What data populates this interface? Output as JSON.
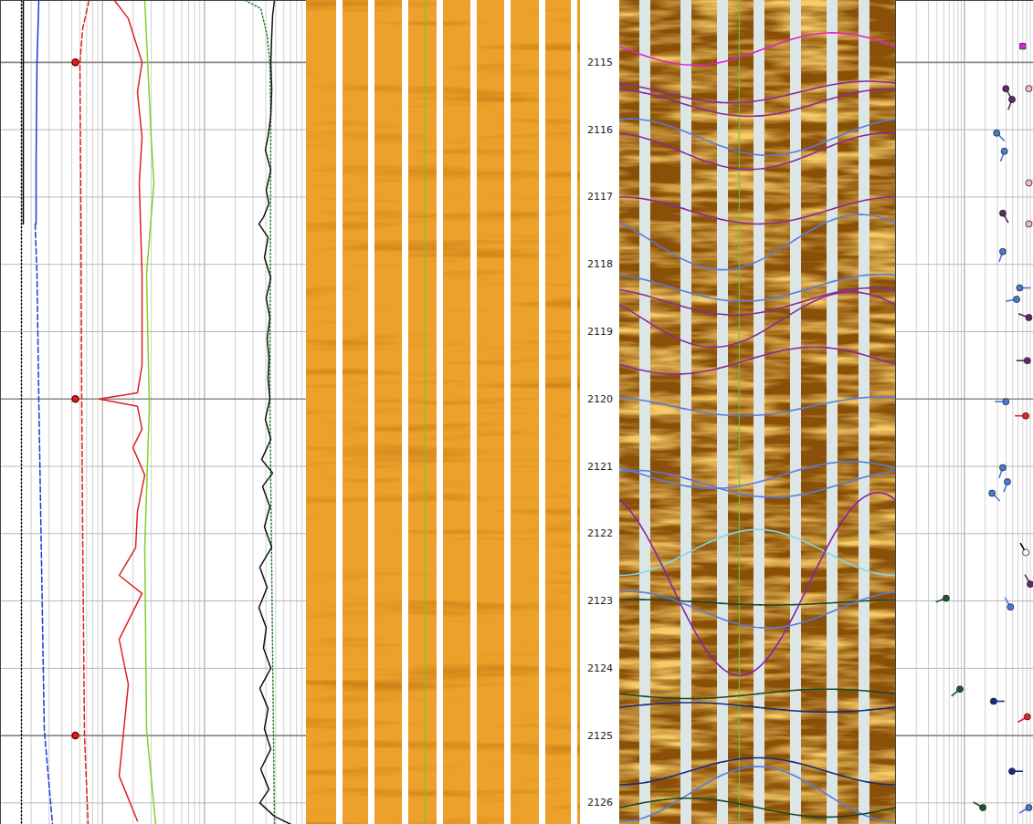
{
  "chart_data": {
    "type": "well_log",
    "ylim": [
      2114.08,
      2126.32
    ],
    "yticks": [
      2115,
      2116,
      2117,
      2118,
      2119,
      2120,
      2121,
      2122,
      2123,
      2124,
      2125,
      2126
    ],
    "grid": true,
    "tick_labels": "y",
    "tracks": [
      {
        "type": "curves",
        "xlim": [
          0,
          335
        ],
        "series": [
          {
            "type": "line",
            "color": "#000000",
            "line_style": "dotted",
            "depth": [
              2114.08,
              2126.32
            ],
            "values": [
              23,
              23
            ]
          },
          {
            "type": "line",
            "color": "#000000",
            "line_style": "solid",
            "depth": [
              2114.08,
              2117.4
            ],
            "values": [
              25,
              25
            ]
          },
          {
            "type": "line",
            "color": "#1a3adc",
            "line_style": "solid",
            "depth": [
              2114.08,
              2115.0,
              2116.5,
              2117.4
            ],
            "values": [
              42,
              40,
              39,
              39
            ]
          },
          {
            "type": "line",
            "color": "#1a3adc",
            "line_style": "dashed",
            "depth": [
              2117.4,
              2118.15,
              2120.0,
              2124.92,
              2126.32
            ],
            "values": [
              38,
              40,
              42,
              48,
              57
            ]
          },
          {
            "type": "line",
            "color": "#e02020",
            "line_style": "dashed",
            "depth": [
              2114.08,
              2114.5,
              2115.0,
              2117.0,
              2120.0,
              2122.0,
              2125.0,
              2126.32
            ],
            "values": [
              97,
              90,
              87,
              88,
              89,
              90,
              92,
              96
            ]
          },
          {
            "type": "scatter",
            "color": "#e02020",
            "marker": "circle",
            "depth": [
              2115,
              2120,
              2125
            ],
            "values": [
              82,
              82,
              82
            ]
          },
          {
            "type": "line",
            "color": "#e02020",
            "line_style": "solid",
            "depth": [
              2114.08,
              2114.35,
              2115.0,
              2115.44,
              2116.11,
              2116.79,
              2118.15,
              2119.5,
              2119.91,
              2120.0,
              2120.11,
              2120.45,
              2120.72,
              2121.13,
              2121.67,
              2122.21,
              2122.62,
              2122.89,
              2123.57,
              2124.24,
              2124.92,
              2125.6,
              2126.27
            ],
            "values": [
              125,
              140,
              155,
              150,
              155,
              152,
              155,
              155,
              150,
              108,
              150,
              155,
              145,
              158,
              150,
              148,
              130,
              155,
              130,
              140,
              135,
              130,
              150
            ]
          },
          {
            "type": "line",
            "color": "#7ed321",
            "line_style": "solid",
            "depth": [
              2114.08,
              2116.11,
              2116.79,
              2118.15,
              2120.11,
              2122.21,
              2124.92,
              2126.32
            ],
            "values": [
              158,
              165,
              168,
              160,
              163,
              158,
              160,
              170
            ]
          },
          {
            "type": "line",
            "color": "#1f7a2a",
            "line_style": "dotted",
            "depth": [
              2114.08,
              2114.2,
              2114.6,
              2115.0,
              2116.0,
              2120.0,
              2126.32
            ],
            "values": [
              268,
              285,
              292,
              295,
              296,
              295,
              300
            ]
          },
          {
            "type": "line",
            "color": "#111111",
            "line_style": "solid",
            "depth": [
              2114.08,
              2114.3,
              2114.6,
              2115.0,
              2115.4,
              2115.8,
              2116.1,
              2116.3,
              2116.6,
              2116.9,
              2117.1,
              2117.3,
              2117.4,
              2117.6,
              2117.9,
              2118.2,
              2118.5,
              2118.8,
              2119.1,
              2119.4,
              2119.7,
              2120.0,
              2120.3,
              2120.6,
              2120.9,
              2121.1,
              2121.3,
              2121.6,
              2121.9,
              2122.2,
              2122.5,
              2122.8,
              2123.1,
              2123.4,
              2123.7,
              2124.0,
              2124.3,
              2124.6,
              2124.9,
              2125.2,
              2125.5,
              2125.8,
              2126.0,
              2126.2,
              2126.32
            ],
            "values": [
              300,
              298,
              297,
              296,
              297,
              296,
              293,
              290,
              296,
              291,
              294,
              288,
              283,
              293,
              289,
              296,
              291,
              295,
              292,
              294,
              293,
              295,
              290,
              296,
              286,
              298,
              287,
              295,
              289,
              297,
              284,
              292,
              283,
              291,
              288,
              296,
              284,
              293,
              289,
              296,
              285,
              294,
              284,
              300,
              318
            ]
          }
        ]
      },
      {
        "type": "image",
        "color": "#eda12a"
      },
      {
        "type": "depth"
      },
      {
        "type": "image",
        "color": "#8a5008",
        "xlim": [
          0,
          360
        ],
        "picks": [
          {
            "depth": 2114.8,
            "amplitude": 0.24,
            "azimuth": 98,
            "color": "#e020d0"
          },
          {
            "depth": 2115.44,
            "amplitude": 0.16,
            "azimuth": 145,
            "color": "#8a2a9a"
          },
          {
            "depth": 2115.6,
            "amplitude": 0.2,
            "azimuth": 169,
            "color": "#8a2a9a"
          },
          {
            "depth": 2116.11,
            "amplitude": 0.27,
            "azimuth": 193,
            "color": "#5a7ad8"
          },
          {
            "depth": 2116.32,
            "amplitude": 0.27,
            "azimuth": 169,
            "color": "#8a2a9a"
          },
          {
            "depth": 2117.2,
            "amplitude": 0.2,
            "azimuth": 181,
            "color": "#8a2a9a"
          },
          {
            "depth": 2117.67,
            "amplitude": 0.41,
            "azimuth": 134,
            "color": "#5a7ad8"
          },
          {
            "depth": 2118.35,
            "amplitude": 0.2,
            "azimuth": 160,
            "color": "#5a7ad8"
          },
          {
            "depth": 2118.55,
            "amplitude": 0.2,
            "azimuth": 150,
            "color": "#8a2a9a"
          },
          {
            "depth": 2118.82,
            "amplitude": 0.41,
            "azimuth": 122,
            "color": "#8a2a9a"
          },
          {
            "depth": 2119.43,
            "amplitude": 0.2,
            "azimuth": 74,
            "color": "#8a2a9a"
          },
          {
            "depth": 2120.11,
            "amplitude": 0.14,
            "azimuth": 160,
            "color": "#5a7ad8"
          },
          {
            "depth": 2121.13,
            "amplitude": 0.2,
            "azimuth": 122,
            "color": "#5a7ad8"
          },
          {
            "depth": 2121.26,
            "amplitude": 0.2,
            "azimuth": 200,
            "color": "#5a7ad8"
          },
          {
            "depth": 2122.28,
            "amplitude": 0.34,
            "azimuth": 0,
            "color": "#80d8e8"
          },
          {
            "depth": 2122.75,
            "amplitude": 1.36,
            "azimuth": 157,
            "color": "#8a20b0"
          },
          {
            "depth": 2123.02,
            "amplitude": 0.04,
            "azimuth": 200,
            "color": "#1a4a2a"
          },
          {
            "depth": 2123.13,
            "amplitude": 0.27,
            "azimuth": 193,
            "color": "#5a7ad8"
          },
          {
            "depth": 2124.38,
            "amplitude": 0.07,
            "azimuth": 90,
            "color": "#1a4a2a"
          },
          {
            "depth": 2124.58,
            "amplitude": 0.07,
            "azimuth": 270,
            "color": "#1a2a7a"
          },
          {
            "depth": 2125.53,
            "amplitude": 0.2,
            "azimuth": 0,
            "color": "#1a2a7a"
          },
          {
            "depth": 2125.87,
            "amplitude": 0.41,
            "azimuth": 0,
            "color": "#5a7ad8"
          },
          {
            "depth": 2126.07,
            "amplitude": 0.14,
            "azimuth": 270,
            "color": "#1a4a2a"
          }
        ]
      },
      {
        "type": "tadpole",
        "xlim": [
          0,
          90
        ],
        "points": [
          {
            "depth": 2114.76,
            "dip": 83,
            "color": "#e020e0",
            "marker": "square"
          },
          {
            "depth": 2115.39,
            "dip": 72,
            "azimuth": 150,
            "color": "#5a2a6a",
            "marker": "circle"
          },
          {
            "depth": 2115.55,
            "dip": 76,
            "azimuth": 200,
            "color": "#5a2a6a",
            "marker": "circle"
          },
          {
            "depth": 2115.39,
            "dip": 87,
            "azimuth": 60,
            "color": "#f4b8c8",
            "marker": "circle"
          },
          {
            "depth": 2116.05,
            "dip": 66,
            "azimuth": 135,
            "color": "#4a7ad8",
            "marker": "circle"
          },
          {
            "depth": 2116.32,
            "dip": 71,
            "azimuth": 200,
            "color": "#4a7ad8",
            "marker": "circle"
          },
          {
            "depth": 2116.79,
            "dip": 87,
            "azimuth": 60,
            "color": "#f4b8c8",
            "marker": "circle"
          },
          {
            "depth": 2117.24,
            "dip": 70,
            "azimuth": 150,
            "color": "#5a2a6a",
            "marker": "circle"
          },
          {
            "depth": 2117.4,
            "dip": 87,
            "azimuth": 60,
            "color": "#f4b8c8",
            "marker": "circle"
          },
          {
            "depth": 2117.81,
            "dip": 70,
            "azimuth": 200,
            "color": "#4a7ad8",
            "marker": "circle"
          },
          {
            "depth": 2118.35,
            "dip": 81,
            "azimuth": 90,
            "color": "#4a7ad8",
            "marker": "circle"
          },
          {
            "depth": 2118.52,
            "dip": 79,
            "azimuth": 260,
            "color": "#4a7ad8",
            "marker": "circle"
          },
          {
            "depth": 2118.79,
            "dip": 87,
            "azimuth": 290,
            "color": "#5a2a6a",
            "marker": "circle"
          },
          {
            "depth": 2119.43,
            "dip": 86,
            "azimuth": 270,
            "color": "#5a2a6a",
            "marker": "circle"
          },
          {
            "depth": 2120.04,
            "dip": 72,
            "azimuth": 270,
            "color": "#4a7ad8",
            "marker": "circle"
          },
          {
            "depth": 2120.25,
            "dip": 85,
            "azimuth": 270,
            "color": "#ee2020",
            "marker": "circle"
          },
          {
            "depth": 2121.02,
            "dip": 70,
            "azimuth": 200,
            "color": "#4a7ad8",
            "marker": "circle"
          },
          {
            "depth": 2121.23,
            "dip": 73,
            "azimuth": 200,
            "color": "#4a7ad8",
            "marker": "circle"
          },
          {
            "depth": 2121.4,
            "dip": 63,
            "azimuth": 135,
            "color": "#4a7ad8",
            "marker": "circle"
          },
          {
            "depth": 2122.28,
            "dip": 85,
            "azimuth": 330,
            "color": "#ffffff",
            "marker": "circle"
          },
          {
            "depth": 2122.75,
            "dip": 88,
            "azimuth": 330,
            "color": "#5a2a6a",
            "marker": "circle"
          },
          {
            "depth": 2122.96,
            "dip": 33,
            "azimuth": 250,
            "color": "#1a5a2a",
            "marker": "circle"
          },
          {
            "depth": 2123.09,
            "dip": 75,
            "azimuth": 330,
            "color": "#4a7ad8",
            "marker": "circle"
          },
          {
            "depth": 2124.31,
            "dip": 42,
            "azimuth": 230,
            "color": "#1a5a2a",
            "marker": "circle"
          },
          {
            "depth": 2124.49,
            "dip": 64,
            "azimuth": 90,
            "color": "#1a2a8a",
            "marker": "circle"
          },
          {
            "depth": 2124.72,
            "dip": 86,
            "azimuth": 240,
            "color": "#ee2020",
            "marker": "circle"
          },
          {
            "depth": 2125.53,
            "dip": 76,
            "azimuth": 90,
            "color": "#1a2a8a",
            "marker": "circle"
          },
          {
            "depth": 2126.07,
            "dip": 57,
            "azimuth": 300,
            "color": "#1a5a2a",
            "marker": "circle"
          },
          {
            "depth": 2126.07,
            "dip": 87,
            "azimuth": 240,
            "color": "#4a7ad8",
            "marker": "circle"
          }
        ]
      }
    ]
  }
}
